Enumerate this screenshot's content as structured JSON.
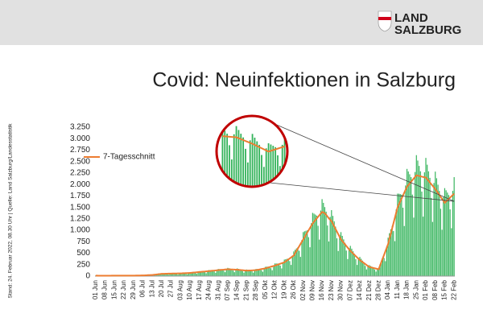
{
  "header": {
    "logo_line1": "LAND",
    "logo_line2": "SALZBURG"
  },
  "source": "Stand: 24. Februar 2022, 08.30 Uhr  |  Quelle: Land Salzburg/Landesstatistik",
  "chart_data": {
    "type": "bar",
    "title": "Covid: Neuinfektionen in Salzburg",
    "color": "#33b35a",
    "grid": false,
    "legend": "upper-left",
    "ylim": [
      0,
      3250
    ],
    "yticks": [
      0,
      250,
      500,
      750,
      {
        "value": 1000,
        "label": "1.000"
      },
      {
        "value": 1250,
        "label": "1.250"
      },
      {
        "value": 1500,
        "label": "1.500"
      },
      {
        "value": 1750,
        "label": "1.750"
      },
      {
        "value": 2000,
        "label": "2.000"
      },
      {
        "value": 2250,
        "label": "2.250"
      },
      {
        "value": 2500,
        "label": "2.500"
      },
      {
        "value": 2750,
        "label": "2.750"
      },
      {
        "value": 3000,
        "label": "3.000"
      },
      {
        "value": 3250,
        "label": "3.250"
      }
    ],
    "categories": [
      "01 Jun",
      null,
      null,
      null,
      null,
      null,
      null,
      "08 Jun",
      null,
      null,
      null,
      null,
      null,
      null,
      "15 Jun",
      null,
      null,
      null,
      null,
      null,
      null,
      "22 Jun",
      null,
      null,
      null,
      null,
      null,
      null,
      "29 Jun",
      null,
      null,
      null,
      null,
      null,
      null,
      "06 Jul",
      null,
      null,
      null,
      null,
      null,
      null,
      "13 Jul",
      null,
      null,
      null,
      null,
      null,
      null,
      "20 Jul",
      null,
      null,
      null,
      null,
      null,
      null,
      "27 Jul",
      null,
      null,
      null,
      null,
      null,
      null,
      "03 Aug",
      null,
      null,
      null,
      null,
      null,
      null,
      "10 Aug",
      null,
      null,
      null,
      null,
      null,
      null,
      "17 Aug",
      null,
      null,
      null,
      null,
      null,
      null,
      "24 Aug",
      null,
      null,
      null,
      null,
      null,
      null,
      "31 Aug",
      null,
      null,
      null,
      null,
      null,
      null,
      "07 Sep",
      null,
      null,
      null,
      null,
      null,
      null,
      "14 Sep",
      null,
      null,
      null,
      null,
      null,
      null,
      "21 Sep",
      null,
      null,
      null,
      null,
      null,
      null,
      "28 Sep",
      null,
      null,
      null,
      null,
      null,
      null,
      "05 Okt",
      null,
      null,
      null,
      null,
      null,
      null,
      "12 Okt",
      null,
      null,
      null,
      null,
      null,
      null,
      "19 Okt",
      null,
      null,
      null,
      null,
      null,
      null,
      "26 Okt",
      null,
      null,
      null,
      null,
      null,
      null,
      "02 Nov",
      null,
      null,
      null,
      null,
      null,
      null,
      "09 Nov",
      null,
      null,
      null,
      null,
      null,
      null,
      "16 Nov",
      null,
      null,
      null,
      null,
      null,
      null,
      "23 Nov",
      null,
      null,
      null,
      null,
      null,
      null,
      "30 Nov",
      null,
      null,
      null,
      null,
      null,
      null,
      "07 Dez",
      null,
      null,
      null,
      null,
      null,
      null,
      "14 Dez",
      null,
      null,
      null,
      null,
      null,
      null,
      "21 Dez",
      null,
      null,
      null,
      null,
      null,
      null,
      "28 Dez",
      null,
      null,
      null,
      null,
      null,
      null,
      "04 Jan",
      null,
      null,
      null,
      null,
      null,
      null,
      "11 Jan",
      null,
      null,
      null,
      null,
      null,
      null,
      "18 Jan",
      null,
      null,
      null,
      null,
      null,
      null,
      "25 Jan",
      null,
      null,
      null,
      null,
      null,
      null,
      "01 Feb",
      null,
      null,
      null,
      null,
      null,
      null,
      "08 Feb",
      null,
      null,
      null,
      null,
      null,
      null,
      "15 Feb",
      null,
      null,
      null,
      null,
      null,
      null,
      "22 Feb"
    ],
    "values": [
      12,
      12,
      10,
      9,
      8,
      5,
      8,
      10,
      9,
      10,
      9,
      8,
      6,
      11,
      12,
      12,
      12,
      12,
      9,
      7,
      13,
      14,
      14,
      13,
      13,
      10,
      7,
      13,
      14,
      14,
      14,
      14,
      12,
      8,
      16,
      18,
      18,
      20,
      20,
      18,
      13,
      25,
      30,
      33,
      35,
      38,
      33,
      26,
      48,
      60,
      59,
      56,
      55,
      45,
      32,
      57,
      66,
      64,
      62,
      60,
      49,
      35,
      62,
      72,
      70,
      69,
      67,
      56,
      40,
      72,
      84,
      84,
      84,
      83,
      69,
      50,
      91,
      108,
      107,
      106,
      104,
      86,
      62,
      112,
      132,
      130,
      128,
      125,
      103,
      74,
      133,
      156,
      153,
      150,
      146,
      120,
      86,
      154,
      180,
      171,
      162,
      153,
      122,
      86,
      148,
      168,
      158,
      147,
      138,
      110,
      76,
      129,
      144,
      139,
      135,
      130,
      107,
      76,
      135,
      156,
      156,
      155,
      154,
      130,
      95,
      172,
      204,
      206,
      206,
      206,
      173,
      128,
      232,
      276,
      276,
      275,
      273,
      230,
      168,
      305,
      360,
      369,
      377,
      382,
      328,
      244,
      450,
      540,
      575,
      605,
      630,
      553,
      420,
      788,
      960,
      978,
      990,
      998,
      850,
      630,
      1155,
      1380,
      1364,
      1343,
      1320,
      1099,
      797,
      1432,
      1680,
      1599,
      1507,
      1407,
      1105,
      756,
      1292,
      1440,
      1314,
      1195,
      1080,
      825,
      548,
      900,
      960,
      879,
      802,
      728,
      558,
      373,
      615,
      660,
      599,
      542,
      487,
      371,
      244,
      398,
      420,
      378,
      338,
      300,
      224,
      146,
      232,
      240,
      222,
      205,
      188,
      145,
      98,
      165,
      180,
      263,
      338,
      405,
      394,
      326,
      652,
      840,
      936,
      1022,
      1095,
      983,
      763,
      1455,
      1800,
      1799,
      1792,
      1778,
      1493,
      1093,
      1980,
      2340,
      2284,
      2223,
      2160,
      1779,
      1277,
      2272,
      2640,
      2522,
      2405,
      2288,
      1845,
      1298,
      2265,
      2580,
      2431,
      2287,
      2145,
      1706,
      1183,
      2033,
      2280,
      2136,
      1995,
      1860,
      1470,
      1012,
      1725,
      1920,
      1873,
      1823,
      1770,
      1457,
      1046,
      1860,
      2160
    ],
    "series": [
      {
        "name": "7-Tagesschnitt",
        "type": "line",
        "color": "#ed7d31",
        "values": [
          10,
          10,
          9,
          9,
          9,
          8,
          8,
          8,
          8,
          9,
          9,
          9,
          10,
          10,
          10,
          10,
          11,
          11,
          11,
          12,
          12,
          12,
          12,
          12,
          12,
          12,
          12,
          12,
          12,
          12,
          13,
          13,
          14,
          14,
          15,
          15,
          16,
          18,
          19,
          21,
          22,
          24,
          25,
          29,
          32,
          36,
          39,
          43,
          46,
          50,
          51,
          51,
          52,
          53,
          54,
          54,
          55,
          56,
          56,
          57,
          58,
          59,
          59,
          60,
          61,
          63,
          64,
          66,
          67,
          69,
          70,
          73,
          76,
          79,
          81,
          84,
          87,
          90,
          93,
          96,
          99,
          101,
          104,
          107,
          110,
          113,
          116,
          119,
          121,
          124,
          127,
          130,
          133,
          136,
          139,
          141,
          144,
          147,
          150,
          149,
          147,
          146,
          144,
          143,
          141,
          140,
          137,
          134,
          131,
          129,
          126,
          123,
          120,
          121,
          123,
          124,
          126,
          127,
          129,
          130,
          136,
          141,
          147,
          153,
          159,
          164,
          170,
          179,
          187,
          196,
          204,
          213,
          221,
          230,
          240,
          250,
          260,
          270,
          280,
          290,
          300,
          321,
          343,
          364,
          386,
          407,
          429,
          450,
          500,
          550,
          600,
          650,
          700,
          750,
          800,
          850,
          900,
          950,
          1000,
          1050,
          1100,
          1150,
          1186,
          1221,
          1257,
          1293,
          1329,
          1364,
          1400,
          1390,
          1370,
          1340,
          1300,
          1260,
          1230,
          1200,
          1143,
          1086,
          1029,
          971,
          914,
          857,
          800,
          764,
          729,
          693,
          657,
          621,
          586,
          550,
          521,
          493,
          464,
          436,
          407,
          379,
          350,
          329,
          307,
          286,
          264,
          243,
          221,
          200,
          193,
          186,
          179,
          171,
          164,
          157,
          150,
          229,
          307,
          386,
          464,
          543,
          621,
          700,
          814,
          929,
          1043,
          1157,
          1271,
          1386,
          1500,
          1564,
          1629,
          1693,
          1757,
          1821,
          1886,
          1950,
          1986,
          2021,
          2057,
          2093,
          2129,
          2164,
          2200,
          2193,
          2186,
          2179,
          2171,
          2164,
          2157,
          2150,
          2114,
          2079,
          2043,
          2007,
          1971,
          1936,
          1900,
          1857,
          1814,
          1771,
          1729,
          1686,
          1643,
          1600,
          1629,
          1657,
          1686,
          1714,
          1743,
          1771,
          1800
        ]
      }
    ]
  }
}
